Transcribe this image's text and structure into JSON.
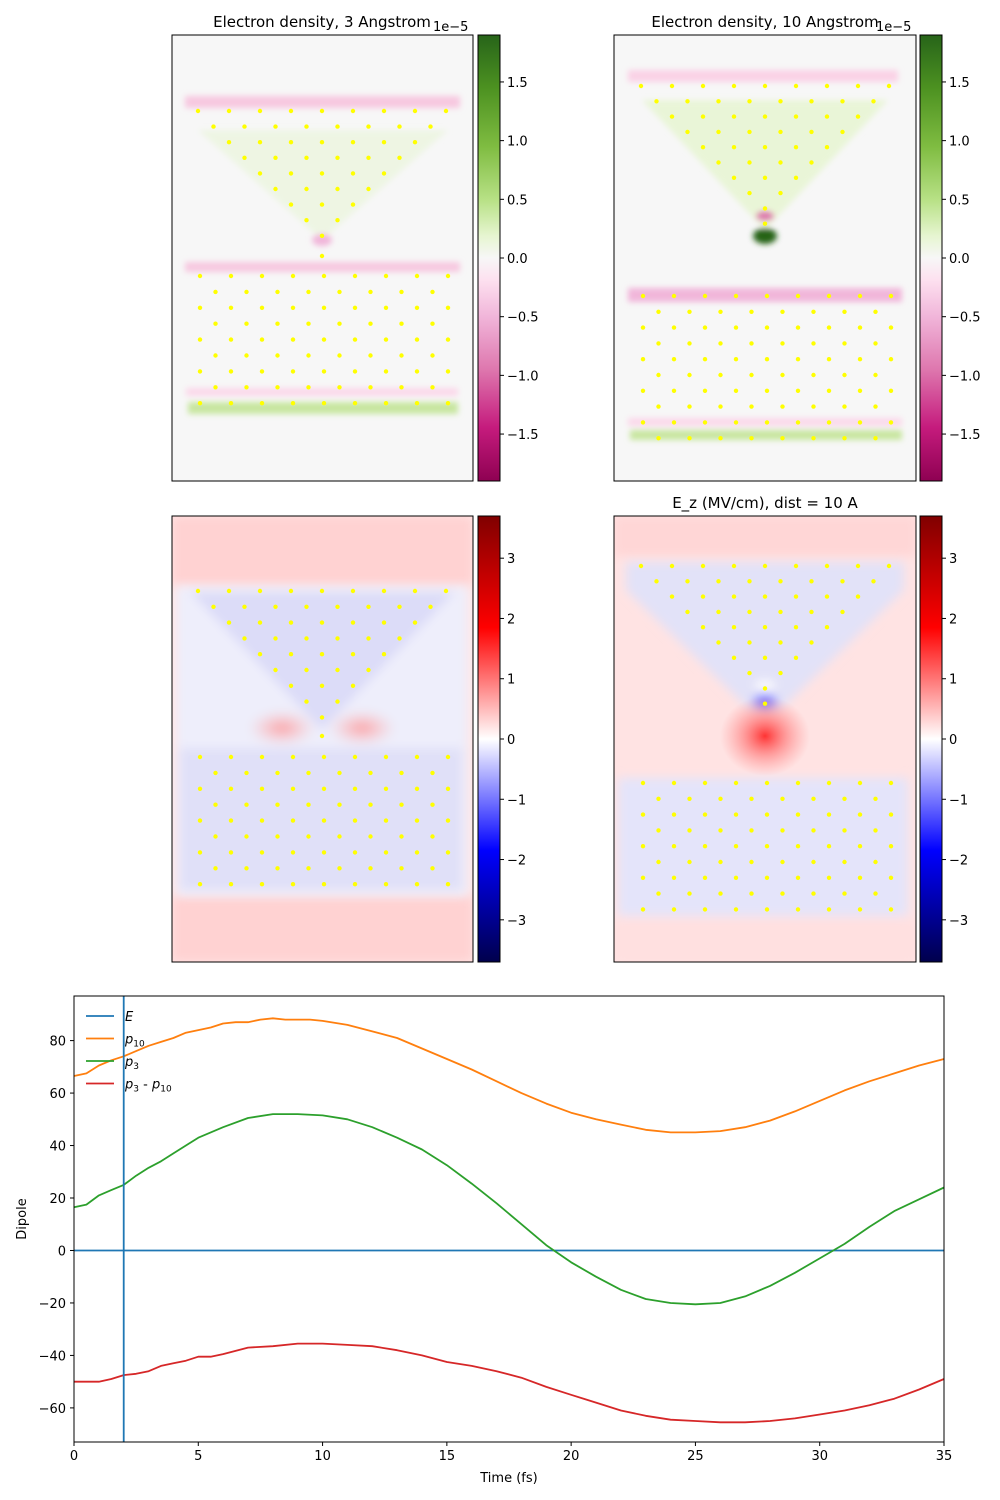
{
  "panels": {
    "density3": {
      "title": "Electron density, 3 Angstrom",
      "colorbar": {
        "cmap": "PiYG",
        "min": -1.9,
        "max": 1.9,
        "exponent_label": "1e−5",
        "ticks": [
          "1.5",
          "1.0",
          "0.5",
          "0.0",
          "−0.5",
          "−1.0",
          "−1.5"
        ]
      }
    },
    "density10": {
      "title": "Electron density, 10 Angstrom",
      "colorbar": {
        "cmap": "PiYG",
        "min": -1.9,
        "max": 1.9,
        "exponent_label": "1e−5",
        "ticks": [
          "1.5",
          "1.0",
          "0.5",
          "0.0",
          "−0.5",
          "−1.0",
          "−1.5"
        ]
      }
    },
    "ez3": {
      "title": "",
      "colorbar": {
        "cmap": "seismic",
        "min": -3.7,
        "max": 3.7,
        "ticks": [
          "3",
          "2",
          "1",
          "0",
          "−1",
          "−2",
          "−3"
        ]
      }
    },
    "ez10": {
      "title": "E_z (MV/cm), dist = 10 A",
      "colorbar": {
        "cmap": "seismic",
        "min": -3.7,
        "max": 3.7,
        "ticks": [
          "3",
          "2",
          "1",
          "0",
          "−1",
          "−2",
          "−3"
        ]
      }
    }
  },
  "colors": {
    "atom": "#ffff00",
    "E": "#1f77b4",
    "p10": "#ff7f0e",
    "p3": "#2ca02c",
    "diff": "#d62728"
  },
  "chart_data": {
    "type": "line",
    "xlabel": "Time (fs)",
    "ylabel": "Dipole",
    "xlim": [
      0,
      35
    ],
    "ylim": [
      -73,
      97
    ],
    "xticks": [
      0,
      5,
      10,
      15,
      20,
      25,
      30,
      35
    ],
    "yticks": [
      80,
      60,
      40,
      20,
      0,
      -20,
      -40,
      -60
    ],
    "legend_position": "upper-left",
    "vline_x": 2,
    "series": [
      {
        "name": "E",
        "key": "E",
        "x": [
          0,
          35
        ],
        "values": [
          0,
          0
        ]
      },
      {
        "name": "p10",
        "key": "p10",
        "x": [
          0,
          0.5,
          1,
          1.5,
          2,
          2.5,
          3,
          3.5,
          4,
          4.5,
          5,
          5.5,
          6,
          6.5,
          7,
          7.5,
          8,
          8.5,
          9,
          9.5,
          10,
          11,
          12,
          13,
          14,
          15,
          16,
          17,
          18,
          19,
          20,
          21,
          22,
          23,
          24,
          25,
          26,
          27,
          28,
          29,
          30,
          31,
          32,
          33,
          34,
          35
        ],
        "values": [
          66.5,
          67.5,
          70.5,
          72.5,
          74,
          76,
          78,
          79.5,
          81,
          83,
          84,
          85,
          86.5,
          87,
          87,
          88,
          88.5,
          88,
          88,
          88,
          87.5,
          86,
          83.5,
          81,
          77,
          73,
          69,
          64.5,
          60,
          56,
          52.5,
          50,
          48,
          46,
          45,
          45,
          45.5,
          47,
          49.5,
          53,
          57,
          61,
          64.5,
          67.5,
          70.5,
          73
        ]
      },
      {
        "name": "p3",
        "key": "p3",
        "x": [
          0,
          0.5,
          1,
          1.5,
          2,
          2.5,
          3,
          3.5,
          4,
          4.5,
          5,
          6,
          7,
          8,
          9,
          10,
          11,
          12,
          13,
          14,
          15,
          16,
          17,
          18,
          19,
          20,
          21,
          22,
          23,
          24,
          25,
          26,
          27,
          28,
          29,
          30,
          31,
          32,
          33,
          34,
          35
        ],
        "values": [
          16.5,
          17.5,
          21,
          23,
          25,
          28.5,
          31.5,
          34,
          37,
          40,
          43,
          47,
          50.5,
          52,
          52,
          51.5,
          50,
          47,
          43,
          38.5,
          32.5,
          25.5,
          18,
          10,
          2,
          -4.5,
          -10,
          -15,
          -18.5,
          -20,
          -20.5,
          -20,
          -17.5,
          -13.5,
          -8.5,
          -3,
          2.5,
          9,
          15,
          19.5,
          24
        ]
      },
      {
        "name": "p3 - p10",
        "key": "diff",
        "x": [
          0,
          0.5,
          1,
          1.5,
          2,
          2.5,
          3,
          3.5,
          4,
          4.5,
          5,
          5.5,
          6,
          7,
          8,
          9,
          10,
          11,
          12,
          13,
          14,
          15,
          16,
          17,
          18,
          19,
          20,
          21,
          22,
          23,
          24,
          25,
          26,
          27,
          28,
          29,
          30,
          31,
          32,
          33,
          34,
          35
        ],
        "values": [
          -50,
          -50,
          -50,
          -49,
          -47.5,
          -47,
          -46,
          -44,
          -43,
          -42,
          -40.5,
          -40.5,
          -39.5,
          -37,
          -36.5,
          -35.5,
          -35.5,
          -36,
          -36.5,
          -38,
          -40,
          -42.5,
          -44,
          -46,
          -48.5,
          -52,
          -55,
          -58,
          -61,
          -63,
          -64.5,
          -65,
          -65.5,
          -65.5,
          -65,
          -64,
          -62.5,
          -61,
          -59,
          -56.5,
          -53,
          -49
        ]
      }
    ]
  }
}
